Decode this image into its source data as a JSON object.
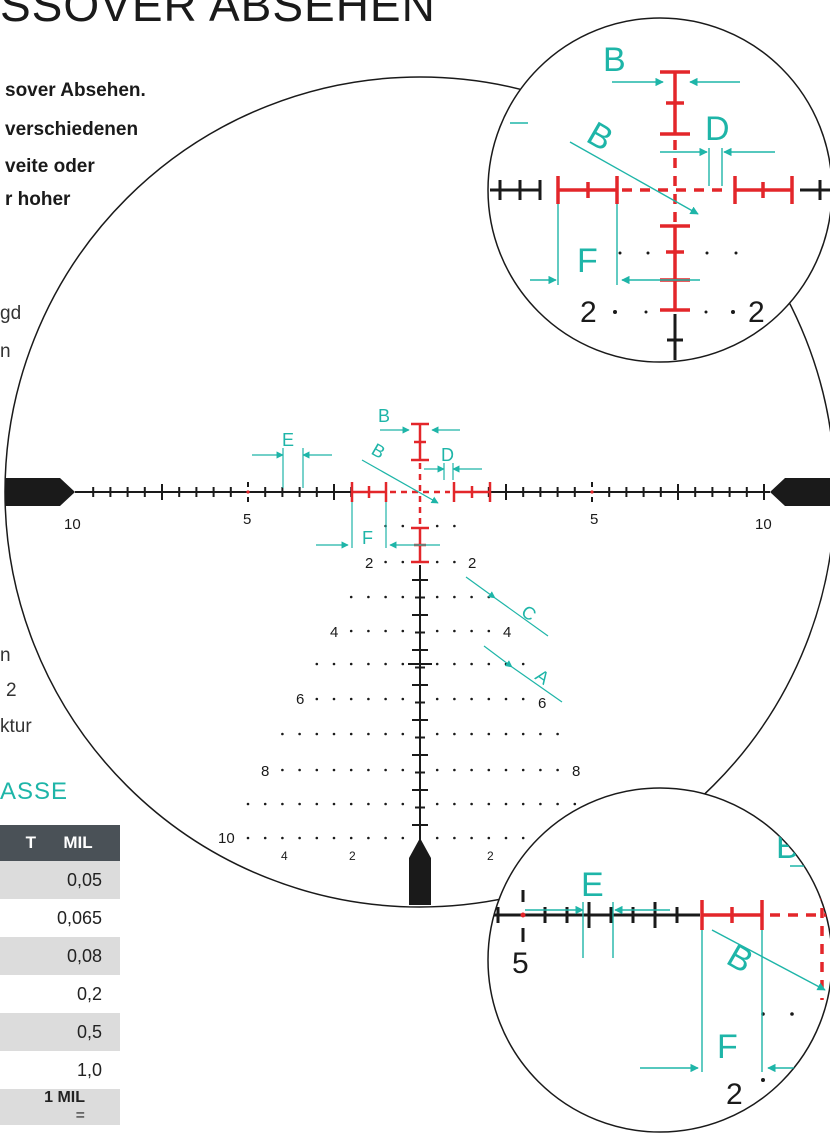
{
  "title": "SSOVER ABSEHEN",
  "intro_lines": [
    "sover    Absehen.",
    "verschiedenen",
    "veite  oder",
    "r hoher"
  ],
  "left_fragments": [
    "gd",
    "n",
    "n",
    "2",
    "ktur"
  ],
  "section_heading": "ASSE",
  "table": {
    "header": [
      "T",
      "MIL"
    ],
    "rows": [
      {
        "label": "",
        "mil": "0,05"
      },
      {
        "label": "",
        "mil": "0,065"
      },
      {
        "label": "",
        "mil": "0,08"
      },
      {
        "label": "",
        "mil": "0,2"
      },
      {
        "label": "",
        "mil": "0,5"
      },
      {
        "label": "",
        "mil": "1,0"
      }
    ],
    "footer_bold": "1 MIL",
    "footer_rest": " ="
  },
  "reticle": {
    "callouts": {
      "A": "A",
      "B": "B",
      "C": "C",
      "D": "D",
      "E": "E",
      "F": "F"
    },
    "numbers": {
      "ten": "10",
      "five": "5",
      "two": "2",
      "four": "4",
      "six": "6",
      "eight": "8"
    },
    "colors": {
      "accent": "#1eb5a8",
      "red": "#e3262a",
      "black": "#1a1a1a"
    }
  }
}
